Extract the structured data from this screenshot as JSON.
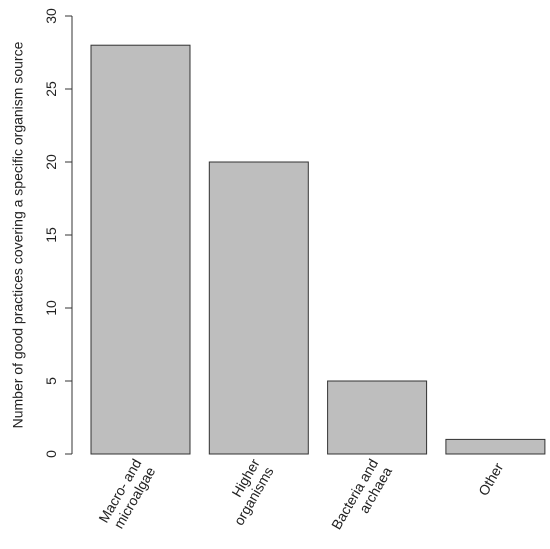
{
  "chart_data": {
    "type": "bar",
    "y_label": "Number of good practices covering a specific organism source",
    "categories": [
      [
        "Macro- and",
        "microalgae"
      ],
      [
        "Higher",
        "organisms"
      ],
      [
        "Bacteria and",
        "archaea"
      ],
      [
        "Other"
      ]
    ],
    "values": [
      28,
      20,
      5,
      1
    ],
    "color": "#bebebe",
    "ylim": [
      0,
      30
    ],
    "yticks": [
      0,
      5,
      10,
      15,
      20,
      25,
      30
    ]
  }
}
